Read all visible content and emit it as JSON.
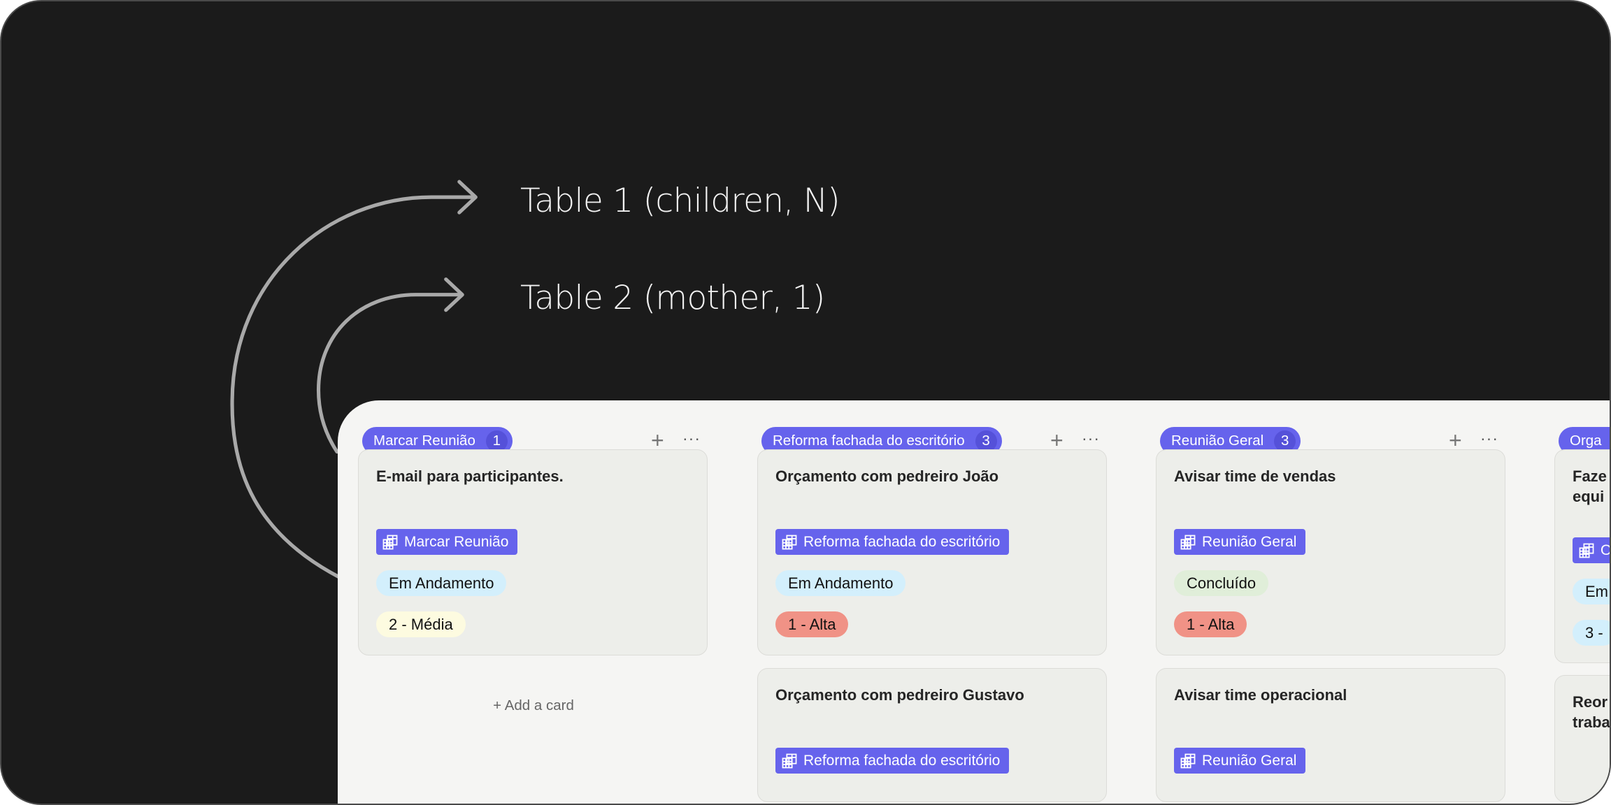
{
  "labels": {
    "table1": "Table 1 (children, N)",
    "table2": "Table 2 (mother, 1)"
  },
  "colors": {
    "pill": "#6663ec",
    "status_in_progress": "#d3effc",
    "status_done": "#e0eed9",
    "priority_high": "#f09286",
    "priority_medium": "#fdfbe0",
    "priority_low": "#d3effc"
  },
  "board": {
    "columns": [
      {
        "title": "Marcar Reunião",
        "count": "1",
        "add_card": "+ Add a card",
        "cards": [
          {
            "title": "E-mail para participantes.",
            "tag": "Marcar Reunião",
            "status": "Em Andamento",
            "priority": "2 - Média"
          }
        ]
      },
      {
        "title": "Reforma fachada do escritório",
        "count": "3",
        "cards": [
          {
            "title": "Orçamento com pedreiro João",
            "tag": "Reforma fachada do escritório",
            "status": "Em Andamento",
            "priority": "1 - Alta"
          },
          {
            "title": "Orçamento com pedreiro Gustavo",
            "tag": "Reforma fachada do escritório"
          }
        ]
      },
      {
        "title": "Reunião Geral",
        "count": "3",
        "cards": [
          {
            "title": "Avisar time de vendas",
            "tag": "Reunião Geral",
            "status": "Concluído",
            "priority": "1 - Alta"
          },
          {
            "title": "Avisar time operacional",
            "tag": "Reunião Geral"
          }
        ]
      },
      {
        "title": "Orga",
        "cards": [
          {
            "title": "Faze equi",
            "tag": "O",
            "status": "Em",
            "priority": "3 -"
          },
          {
            "title": "Reor traba"
          }
        ]
      }
    ],
    "add_icon": "plus-icon",
    "more_icon": "ellipsis-icon",
    "tag_icon": "table-icon"
  }
}
